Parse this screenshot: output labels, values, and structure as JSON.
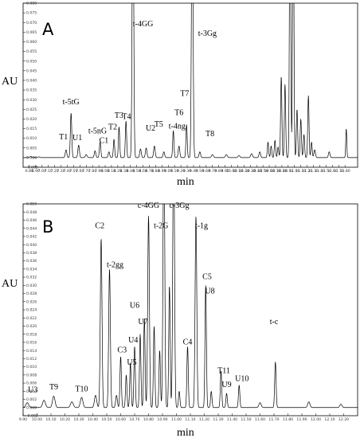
{
  "chart_data": [
    {
      "type": "line",
      "panel": "A",
      "ylabel": "AU",
      "xlabel": "min",
      "xlim": [
        6.7,
        12.0
      ],
      "ylim": [
        -0.005,
        0.08
      ],
      "x_ticks": [
        "6.80",
        "6.90",
        "7.00",
        "7.10",
        "7.20",
        "7.30",
        "7.40",
        "7.50",
        "7.60",
        "7.70",
        "7.80",
        "7.90",
        "8.00",
        "8.10",
        "8.20",
        "8.30",
        "8.40",
        "8.50",
        "8.60",
        "8.70",
        "8.80",
        "8.90",
        "9.00",
        "9.10",
        "9.20",
        "9.30",
        "9.40",
        "9.50",
        "9.60",
        "9.70",
        "9.80",
        "9.90",
        "10.00",
        "10.10",
        "10.20",
        "10.30",
        "10.40",
        "10.50",
        "10.60",
        "10.70",
        "10.80",
        "10.90",
        "11.00",
        "11.10",
        "11.20",
        "11.30",
        "11.40",
        "11.50",
        "11.60",
        "11.70",
        "11.80"
      ],
      "y_ticks": [
        "-0.005",
        "0.000",
        "0.005",
        "0.010",
        "0.015",
        "0.020",
        "0.025",
        "0.030",
        "0.035",
        "0.040",
        "0.045",
        "0.050",
        "0.055",
        "0.060",
        "0.065",
        "0.070",
        "0.075",
        "0.080"
      ],
      "series": [
        {
          "peaks": [
            {
              "x": 6.82,
              "h": 0.0005,
              "w": 0.015
            },
            {
              "x": 6.95,
              "h": 0.0004,
              "w": 0.015
            },
            {
              "x": 7.38,
              "h": 0.004,
              "w": 0.012
            },
            {
              "x": 7.46,
              "h": 0.023,
              "w": 0.011
            },
            {
              "x": 7.58,
              "h": 0.0065,
              "w": 0.012
            },
            {
              "x": 7.7,
              "h": 0.0015,
              "w": 0.015
            },
            {
              "x": 7.84,
              "h": 0.0035,
              "w": 0.012
            },
            {
              "x": 7.92,
              "h": 0.008,
              "w": 0.011
            },
            {
              "x": 8.06,
              "h": 0.003,
              "w": 0.012
            },
            {
              "x": 8.14,
              "h": 0.0095,
              "w": 0.01
            },
            {
              "x": 8.22,
              "h": 0.016,
              "w": 0.01
            },
            {
              "x": 8.33,
              "h": 0.019,
              "w": 0.01
            },
            {
              "x": 8.44,
              "h": 0.15,
              "w": 0.012
            },
            {
              "x": 8.56,
              "h": 0.0045,
              "w": 0.012
            },
            {
              "x": 8.65,
              "h": 0.005,
              "w": 0.012
            },
            {
              "x": 8.78,
              "h": 0.006,
              "w": 0.012
            },
            {
              "x": 8.93,
              "h": 0.003,
              "w": 0.012
            },
            {
              "x": 9.08,
              "h": 0.014,
              "w": 0.01
            },
            {
              "x": 9.17,
              "h": 0.006,
              "w": 0.012
            },
            {
              "x": 9.29,
              "h": 0.017,
              "w": 0.01
            },
            {
              "x": 9.38,
              "h": 0.15,
              "w": 0.012
            },
            {
              "x": 9.5,
              "h": 0.003,
              "w": 0.012
            },
            {
              "x": 9.7,
              "h": 0.0015,
              "w": 0.015
            },
            {
              "x": 9.92,
              "h": 0.0015,
              "w": 0.015
            },
            {
              "x": 10.12,
              "h": 0.001,
              "w": 0.015
            },
            {
              "x": 10.32,
              "h": 0.002,
              "w": 0.015
            },
            {
              "x": 10.45,
              "h": 0.003,
              "w": 0.012
            },
            {
              "x": 10.58,
              "h": 0.008,
              "w": 0.01
            },
            {
              "x": 10.63,
              "h": 0.006,
              "w": 0.01
            },
            {
              "x": 10.69,
              "h": 0.009,
              "w": 0.01
            },
            {
              "x": 10.74,
              "h": 0.0055,
              "w": 0.01
            },
            {
              "x": 10.79,
              "h": 0.042,
              "w": 0.01
            },
            {
              "x": 10.85,
              "h": 0.038,
              "w": 0.01
            },
            {
              "x": 10.93,
              "h": 0.15,
              "w": 0.01
            },
            {
              "x": 10.98,
              "h": 0.15,
              "w": 0.01
            },
            {
              "x": 11.04,
              "h": 0.025,
              "w": 0.01
            },
            {
              "x": 11.1,
              "h": 0.02,
              "w": 0.01
            },
            {
              "x": 11.15,
              "h": 0.012,
              "w": 0.01
            },
            {
              "x": 11.22,
              "h": 0.032,
              "w": 0.01
            },
            {
              "x": 11.27,
              "h": 0.008,
              "w": 0.01
            },
            {
              "x": 11.32,
              "h": 0.004,
              "w": 0.012
            },
            {
              "x": 11.55,
              "h": 0.003,
              "w": 0.012
            },
            {
              "x": 11.82,
              "h": 0.015,
              "w": 0.008
            }
          ]
        }
      ],
      "annotations": [
        {
          "text": "T1",
          "x": 7.34,
          "y": 0.0095
        },
        {
          "text": "t-5tG",
          "x": 7.46,
          "y": 0.0275
        },
        {
          "text": "U1",
          "x": 7.56,
          "y": 0.009
        },
        {
          "text": "t-5nG",
          "x": 7.88,
          "y": 0.0125
        },
        {
          "text": "C1",
          "x": 7.98,
          "y": 0.0075
        },
        {
          "text": "T2",
          "x": 8.12,
          "y": 0.0145
        },
        {
          "text": "T3",
          "x": 8.22,
          "y": 0.0205
        },
        {
          "text": "T4",
          "x": 8.34,
          "y": 0.02
        },
        {
          "text": "t-4GG",
          "x": 8.6,
          "y": 0.068
        },
        {
          "text": "U2",
          "x": 8.72,
          "y": 0.014
        },
        {
          "text": "T5",
          "x": 8.85,
          "y": 0.016
        },
        {
          "text": "T6",
          "x": 9.17,
          "y": 0.022
        },
        {
          "text": "t-4ng",
          "x": 9.14,
          "y": 0.015
        },
        {
          "text": "T7",
          "x": 9.26,
          "y": 0.032
        },
        {
          "text": "t-3Gg",
          "x": 9.62,
          "y": 0.063
        },
        {
          "text": "T8",
          "x": 9.66,
          "y": 0.011
        }
      ]
    },
    {
      "type": "line",
      "panel": "B",
      "ylabel": "AU",
      "xlabel": "min",
      "xlim": [
        9.9,
        12.3
      ],
      "ylim": [
        -0.002,
        0.05
      ],
      "x_ticks": [
        "9.90",
        "10.00",
        "10.10",
        "10.20",
        "10.30",
        "10.40",
        "10.50",
        "10.60",
        "10.70",
        "10.80",
        "10.90",
        "11.00",
        "11.10",
        "11.20",
        "11.30",
        "11.40",
        "11.50",
        "11.60",
        "11.70",
        "11.80",
        "11.90",
        "12.00",
        "12.10",
        "12.20"
      ],
      "y_ticks": [
        "-0.002",
        "0.000",
        "0.002",
        "0.004",
        "0.006",
        "0.008",
        "0.010",
        "0.012",
        "0.014",
        "0.016",
        "0.018",
        "0.020",
        "0.022",
        "0.024",
        "0.026",
        "0.028",
        "0.030",
        "0.032",
        "0.034",
        "0.036",
        "0.038",
        "0.040",
        "0.042",
        "0.044",
        "0.046",
        "0.048",
        "0.050"
      ],
      "series": [
        {
          "peaks": [
            {
              "x": 9.93,
              "h": 0.0012,
              "w": 0.01
            },
            {
              "x": 10.05,
              "h": 0.0018,
              "w": 0.01
            },
            {
              "x": 10.12,
              "h": 0.0028,
              "w": 0.009
            },
            {
              "x": 10.25,
              "h": 0.0014,
              "w": 0.01
            },
            {
              "x": 10.32,
              "h": 0.0025,
              "w": 0.009
            },
            {
              "x": 10.42,
              "h": 0.003,
              "w": 0.008
            },
            {
              "x": 10.46,
              "h": 0.0415,
              "w": 0.006
            },
            {
              "x": 10.52,
              "h": 0.034,
              "w": 0.006
            },
            {
              "x": 10.57,
              "h": 0.003,
              "w": 0.006
            },
            {
              "x": 10.6,
              "h": 0.0125,
              "w": 0.005
            },
            {
              "x": 10.64,
              "h": 0.008,
              "w": 0.005
            },
            {
              "x": 10.67,
              "h": 0.011,
              "w": 0.005
            },
            {
              "x": 10.7,
              "h": 0.015,
              "w": 0.005
            },
            {
              "x": 10.74,
              "h": 0.018,
              "w": 0.005
            },
            {
              "x": 10.77,
              "h": 0.022,
              "w": 0.005
            },
            {
              "x": 10.8,
              "h": 0.047,
              "w": 0.006
            },
            {
              "x": 10.84,
              "h": 0.02,
              "w": 0.005
            },
            {
              "x": 10.88,
              "h": 0.014,
              "w": 0.005
            },
            {
              "x": 10.91,
              "h": 0.07,
              "w": 0.006
            },
            {
              "x": 10.95,
              "h": 0.03,
              "w": 0.005
            },
            {
              "x": 10.98,
              "h": 0.07,
              "w": 0.006
            },
            {
              "x": 11.02,
              "h": 0.004,
              "w": 0.005
            },
            {
              "x": 11.08,
              "h": 0.015,
              "w": 0.005
            },
            {
              "x": 11.14,
              "h": 0.047,
              "w": 0.006
            },
            {
              "x": 11.21,
              "h": 0.03,
              "w": 0.005
            },
            {
              "x": 11.25,
              "h": 0.004,
              "w": 0.005
            },
            {
              "x": 11.32,
              "h": 0.009,
              "w": 0.005
            },
            {
              "x": 11.36,
              "h": 0.0035,
              "w": 0.005
            },
            {
              "x": 11.45,
              "h": 0.0055,
              "w": 0.005
            },
            {
              "x": 11.6,
              "h": 0.0012,
              "w": 0.008
            },
            {
              "x": 11.71,
              "h": 0.0112,
              "w": 0.005
            },
            {
              "x": 11.95,
              "h": 0.0014,
              "w": 0.008
            },
            {
              "x": 12.18,
              "h": 0.0008,
              "w": 0.008
            }
          ]
        }
      ],
      "annotations": [
        {
          "text": "U3",
          "x": 9.97,
          "y": 0.0038
        },
        {
          "text": "T9",
          "x": 10.12,
          "y": 0.0045
        },
        {
          "text": "T10",
          "x": 10.32,
          "y": 0.004
        },
        {
          "text": "C2",
          "x": 10.45,
          "y": 0.044
        },
        {
          "text": "t-2gg",
          "x": 10.56,
          "y": 0.0345
        },
        {
          "text": "C3",
          "x": 10.61,
          "y": 0.0135
        },
        {
          "text": "U5",
          "x": 10.68,
          "y": 0.0105
        },
        {
          "text": "U4",
          "x": 10.69,
          "y": 0.016
        },
        {
          "text": "U6",
          "x": 10.7,
          "y": 0.0245
        },
        {
          "text": "U7",
          "x": 10.76,
          "y": 0.0205
        },
        {
          "text": "c-4GG",
          "x": 10.8,
          "y": 0.049
        },
        {
          "text": "t-2G",
          "x": 10.89,
          "y": 0.044
        },
        {
          "text": "c-3Gg",
          "x": 11.02,
          "y": 0.049
        },
        {
          "text": "t-1g",
          "x": 11.18,
          "y": 0.044
        },
        {
          "text": "C4",
          "x": 11.08,
          "y": 0.0155
        },
        {
          "text": "C5",
          "x": 11.22,
          "y": 0.0315
        },
        {
          "text": "U8",
          "x": 11.24,
          "y": 0.028
        },
        {
          "text": "T11",
          "x": 11.34,
          "y": 0.0085
        },
        {
          "text": "U9",
          "x": 11.36,
          "y": 0.005
        },
        {
          "text": "U10",
          "x": 11.47,
          "y": 0.0065
        },
        {
          "text": "t-c",
          "x": 11.7,
          "y": 0.0205
        }
      ]
    }
  ]
}
